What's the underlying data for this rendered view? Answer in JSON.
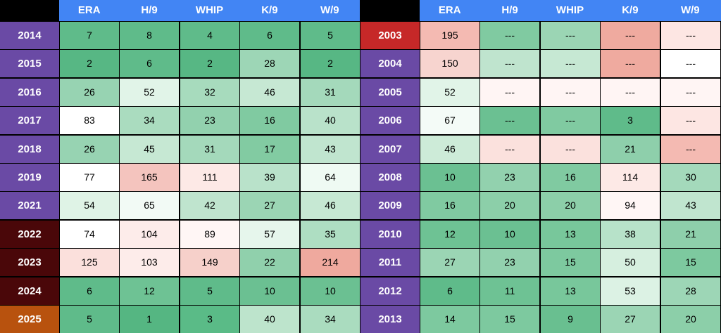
{
  "headers": [
    "ERA",
    "H/9",
    "WHIP",
    "K/9",
    "W/9"
  ],
  "colors": {
    "header": "#4285f4",
    "purple": "#6a4aa5",
    "maroon": "#4a0709",
    "orange": "#b8520e",
    "red": "#c62828"
  },
  "left": [
    {
      "year": "2014",
      "yc": "purple",
      "vals": [
        "7",
        "8",
        "4",
        "6",
        "5"
      ],
      "bg": [
        "#5fbb8a",
        "#5fbb8a",
        "#5fbb8a",
        "#5fbb8a",
        "#5fbb8a"
      ]
    },
    {
      "year": "2015",
      "yc": "purple",
      "vals": [
        "2",
        "6",
        "2",
        "28",
        "2"
      ],
      "bg": [
        "#57b784",
        "#5fbb8a",
        "#57b784",
        "#9dd6b6",
        "#57b784"
      ]
    },
    {
      "year": "2016",
      "yc": "purple",
      "vals": [
        "26",
        "52",
        "32",
        "46",
        "31"
      ],
      "bg": [
        "#97d3b2",
        "#e1f4e8",
        "#a7dbbd",
        "#c6e8d3",
        "#a4d9bb"
      ]
    },
    {
      "year": "2017",
      "yc": "purple",
      "vals": [
        "83",
        "34",
        "23",
        "16",
        "40"
      ],
      "bg": [
        "#ffffff",
        "#aadcbf",
        "#92d1ae",
        "#80caa1",
        "#b9e2ca"
      ]
    },
    {
      "year": "2018",
      "yc": "purple",
      "vals": [
        "26",
        "45",
        "31",
        "17",
        "43"
      ],
      "bg": [
        "#97d3b2",
        "#c6e8d3",
        "#a4d9bb",
        "#82cba2",
        "#c0e5cf"
      ]
    },
    {
      "year": "2019",
      "yc": "purple",
      "vals": [
        "77",
        "165",
        "111",
        "39",
        "64"
      ],
      "bg": [
        "#ffffff",
        "#f4c4be",
        "#fde9e6",
        "#b9e2ca",
        "#effaf3"
      ]
    },
    {
      "year": "2021",
      "yc": "purple",
      "vals": [
        "54",
        "65",
        "42",
        "27",
        "46"
      ],
      "bg": [
        "#dff3e6",
        "#f2faf5",
        "#bfe4ce",
        "#9bd5b4",
        "#c6e8d3"
      ]
    },
    {
      "year": "2022",
      "yc": "maroon",
      "vals": [
        "74",
        "104",
        "89",
        "57",
        "35"
      ],
      "bg": [
        "#ffffff",
        "#fdecea",
        "#fff6f5",
        "#e6f6ec",
        "#aedec2"
      ]
    },
    {
      "year": "2023",
      "yc": "maroon",
      "vals": [
        "125",
        "103",
        "149",
        "22",
        "214"
      ],
      "bg": [
        "#fbe0dc",
        "#fdecea",
        "#f6d0ca",
        "#90d0ac",
        "#efa99e"
      ]
    },
    {
      "year": "2024",
      "yc": "maroon",
      "vals": [
        "6",
        "12",
        "5",
        "10",
        "10"
      ],
      "bg": [
        "#5fbb8a",
        "#6ec294",
        "#5fbb8a",
        "#6bc092",
        "#6bc092"
      ]
    },
    {
      "year": "2025",
      "yc": "orange",
      "vals": [
        "5",
        "1",
        "3",
        "40",
        "34"
      ],
      "bg": [
        "#5fbb8a",
        "#55b682",
        "#5abb87",
        "#bde4cc",
        "#aadcbf"
      ]
    }
  ],
  "right": [
    {
      "year": "2003",
      "yc": "red",
      "vals": [
        "195",
        "---",
        "---",
        "---",
        "---"
      ],
      "bg": [
        "#f4bab2",
        "#80caa1",
        "#9bd5b4",
        "#efaa9f",
        "#fde6e3"
      ]
    },
    {
      "year": "2004",
      "yc": "purple",
      "vals": [
        "150",
        "---",
        "---",
        "---",
        "---"
      ],
      "bg": [
        "#f7d4cf",
        "#bfe4ce",
        "#c6e8d3",
        "#efaa9f",
        "#ffffff"
      ]
    },
    {
      "year": "2005",
      "yc": "purple",
      "vals": [
        "52",
        "---",
        "---",
        "---",
        "---"
      ],
      "bg": [
        "#e1f4e8",
        "#fff5f4",
        "#fff5f4",
        "#fff5f4",
        "#fff5f4"
      ]
    },
    {
      "year": "2006",
      "yc": "purple",
      "vals": [
        "67",
        "---",
        "---",
        "3",
        "---"
      ],
      "bg": [
        "#f4fbf7",
        "#6bc092",
        "#80caa1",
        "#5fbb8a",
        "#fde6e3"
      ]
    },
    {
      "year": "2007",
      "yc": "purple",
      "vals": [
        "46",
        "---",
        "---",
        "21",
        "---"
      ],
      "bg": [
        "#cdebd8",
        "#fbe1dd",
        "#fbe1dd",
        "#8ecfab",
        "#f4bab2"
      ]
    },
    {
      "year": "2008",
      "yc": "purple",
      "vals": [
        "10",
        "23",
        "16",
        "114",
        "30"
      ],
      "bg": [
        "#6bc092",
        "#92d1ae",
        "#80caa1",
        "#fde9e6",
        "#a4d9bb"
      ]
    },
    {
      "year": "2009",
      "yc": "purple",
      "vals": [
        "16",
        "20",
        "20",
        "94",
        "43"
      ],
      "bg": [
        "#80caa1",
        "#8ccfa9",
        "#8ccfa9",
        "#fff6f5",
        "#c0e5cf"
      ]
    },
    {
      "year": "2010",
      "yc": "purple",
      "vals": [
        "12",
        "10",
        "13",
        "38",
        "21"
      ],
      "bg": [
        "#6ec294",
        "#6bc092",
        "#78c79b",
        "#b7e2c9",
        "#8ecfab"
      ]
    },
    {
      "year": "2011",
      "yc": "purple",
      "vals": [
        "27",
        "23",
        "15",
        "50",
        "15"
      ],
      "bg": [
        "#9bd5b4",
        "#92d1ae",
        "#7dc99f",
        "#d6efdf",
        "#7dc99f"
      ]
    },
    {
      "year": "2012",
      "yc": "purple",
      "vals": [
        "6",
        "11",
        "13",
        "53",
        "28"
      ],
      "bg": [
        "#5fbb8a",
        "#6ec294",
        "#78c79b",
        "#dcf2e4",
        "#9dd6b6"
      ]
    },
    {
      "year": "2013",
      "yc": "purple",
      "vals": [
        "14",
        "15",
        "9",
        "27",
        "20"
      ],
      "bg": [
        "#7dc99f",
        "#7dc99f",
        "#69bf90",
        "#9bd5b4",
        "#8ccfa9"
      ]
    }
  ]
}
